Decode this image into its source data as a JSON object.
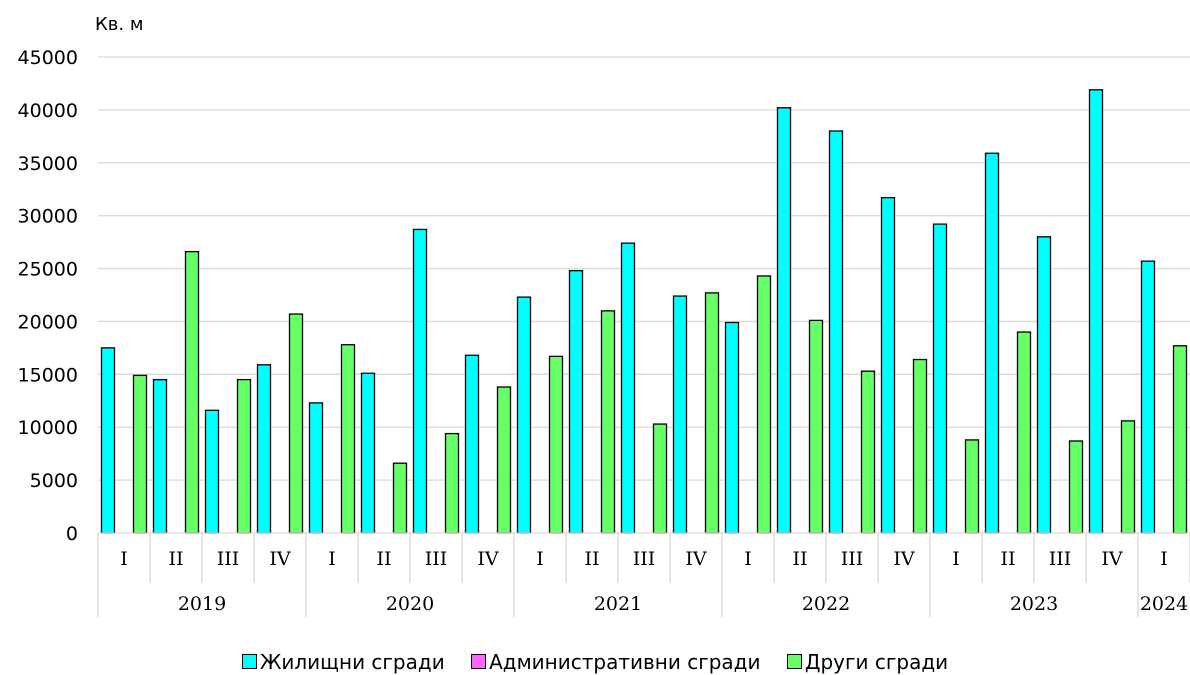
{
  "chart_data": {
    "type": "bar",
    "ylabel": "Кв. м",
    "ylim": [
      0,
      45000
    ],
    "yticks": [
      0,
      5000,
      10000,
      15000,
      20000,
      25000,
      30000,
      35000,
      40000,
      45000
    ],
    "grid": true,
    "legend_position": "bottom",
    "groups": [
      {
        "year": "2019",
        "quarters": [
          "I",
          "II",
          "III",
          "IV"
        ]
      },
      {
        "year": "2020",
        "quarters": [
          "I",
          "II",
          "III",
          "IV"
        ]
      },
      {
        "year": "2021",
        "quarters": [
          "I",
          "II",
          "III",
          "IV"
        ]
      },
      {
        "year": "2022",
        "quarters": [
          "I",
          "II",
          "III",
          "IV"
        ]
      },
      {
        "year": "2023",
        "quarters": [
          "I",
          "II",
          "III",
          "IV"
        ]
      },
      {
        "year": "2024",
        "quarters": [
          "I"
        ]
      }
    ],
    "series": [
      {
        "name": "Жилищни сгради",
        "color": "#00FFFF",
        "values": [
          17500,
          14500,
          11600,
          15900,
          12300,
          15100,
          28700,
          16800,
          22300,
          24800,
          27400,
          22400,
          19900,
          40200,
          38000,
          31700,
          29200,
          35900,
          28000,
          41900,
          25700
        ]
      },
      {
        "name": "Административни сгради",
        "color": "#FF66FF",
        "values": [
          0,
          0,
          0,
          0,
          0,
          0,
          0,
          0,
          0,
          0,
          0,
          0,
          0,
          0,
          0,
          0,
          0,
          0,
          0,
          0,
          0
        ]
      },
      {
        "name": "Други сгради",
        "color": "#66FF66",
        "values": [
          14900,
          26600,
          14500,
          20700,
          17800,
          6600,
          9400,
          13800,
          16700,
          21000,
          10300,
          22700,
          24300,
          20100,
          15300,
          16400,
          8800,
          19000,
          8700,
          10600,
          17700
        ]
      }
    ]
  }
}
